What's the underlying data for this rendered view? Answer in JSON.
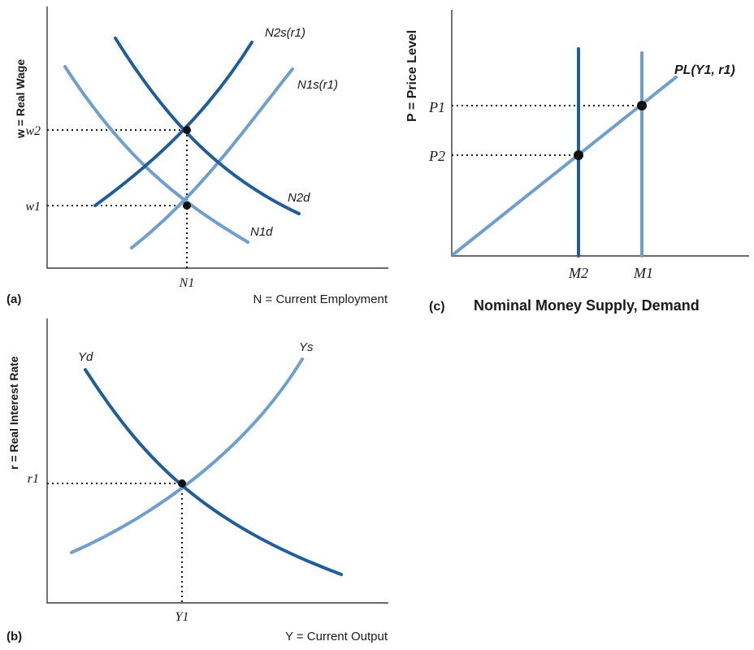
{
  "panel_a": {
    "label": "(a)",
    "ylabel": "w = Real Wage",
    "xlabel": "N = Current Employment",
    "tick_w2": "w2",
    "tick_w1": "w1",
    "tick_n1": "N1",
    "curve_ns2": "N2s(r1)",
    "curve_ns1": "N1s(r1)",
    "curve_nd2": "N2d",
    "curve_nd1": "N1d"
  },
  "panel_b": {
    "label": "(b)",
    "ylabel": "r = Real Interest Rate",
    "xlabel": "Y = Current Output",
    "tick_r1": "r1",
    "tick_y1": "Y1",
    "curve_yd": "Yd",
    "curve_ys": "Ys"
  },
  "panel_c": {
    "label": "(c)",
    "ylabel": "P = Price Level",
    "xlabel": "Nominal Money Supply, Demand",
    "tick_p1": "P1",
    "tick_p2": "P2",
    "tick_m2": "M2",
    "tick_m1": "M1",
    "curve_pl": "PL(Y1, r1)"
  },
  "colors": {
    "dark_curve": "#1f5e9a",
    "light_curve": "#6f9fce"
  }
}
